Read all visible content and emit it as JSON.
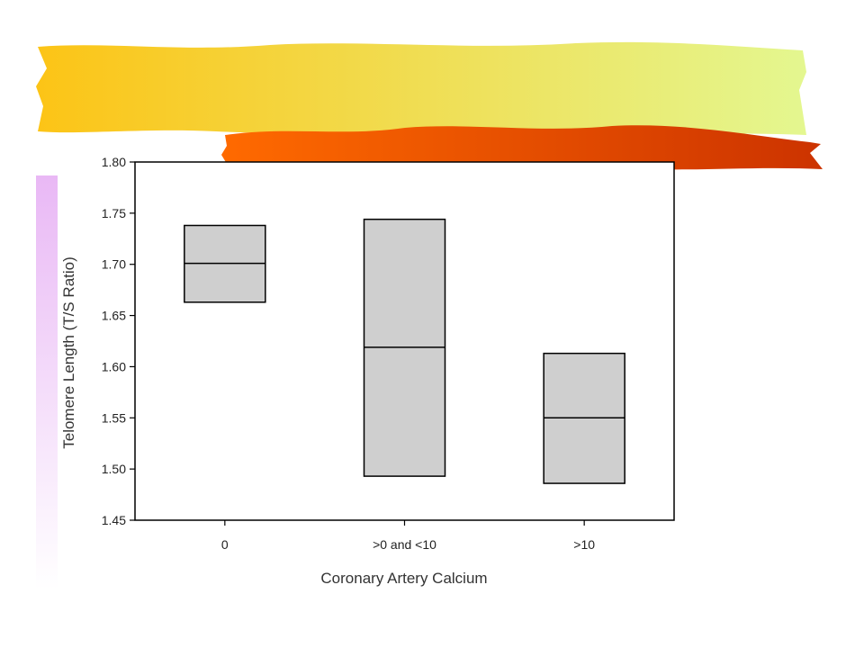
{
  "slide": {
    "colors": {
      "banner_left": "#fcc416",
      "banner_right": "#e4f790",
      "ribbon_left": "#ff6a00",
      "ribbon_right": "#cc3300",
      "side_bar": "#e9b8f5",
      "box_fill": "#cfcfcf",
      "box_stroke": "#000000"
    }
  },
  "chart_data": {
    "type": "box",
    "title": "",
    "xlabel": "Coronary Artery Calcium",
    "ylabel": "Telomere Length (T/S Ratio)",
    "ylim": [
      1.45,
      1.8
    ],
    "yticks": [
      "1.45",
      "1.50",
      "1.55",
      "1.60",
      "1.65",
      "1.70",
      "1.75",
      "1.80"
    ],
    "categories": [
      "0",
      ">0 and <10",
      ">10"
    ],
    "boxes": [
      {
        "category": "0",
        "q1": 1.663,
        "median": 1.701,
        "q3": 1.738
      },
      {
        "category": ">0 and <10",
        "q1": 1.493,
        "median": 1.619,
        "q3": 1.744
      },
      {
        "category": ">10",
        "q1": 1.486,
        "median": 1.55,
        "q3": 1.613
      }
    ],
    "grid": false,
    "legend": "none"
  }
}
